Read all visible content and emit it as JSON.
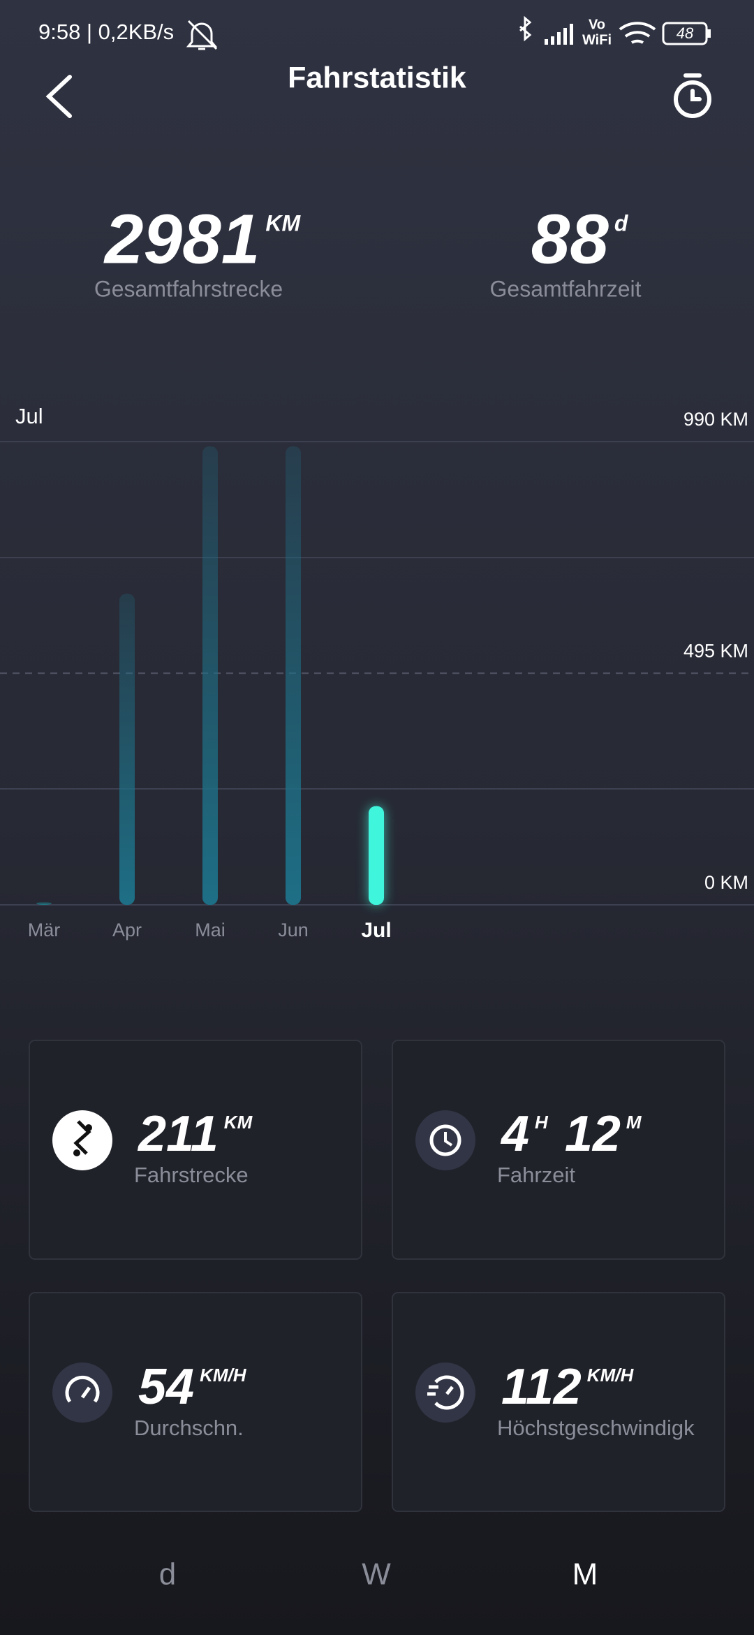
{
  "status_bar": {
    "time": "9:58 | 0,2KB/s",
    "volte": "Vo",
    "wifi": "WiFi",
    "battery": "48"
  },
  "header": {
    "title": "Fahrstatistik"
  },
  "summary": [
    {
      "value": "2981",
      "unit": "KM",
      "label": "Gesamtfahrstrecke"
    },
    {
      "value": "88",
      "unit": "d",
      "label": "Gesamtfahrzeit"
    }
  ],
  "chart_data": {
    "type": "bar",
    "period_label": "Jul",
    "categories": [
      "Mär",
      "Apr",
      "Mai",
      "Jun",
      "Jul"
    ],
    "values": [
      6,
      665,
      980,
      980,
      211
    ],
    "colors": [
      "#1e7a86",
      "#1e6f86",
      "#1e6f86",
      "#1e6f86",
      "#3ff5dc"
    ],
    "ylim": [
      0,
      990
    ],
    "yticks": [
      {
        "value": 0,
        "label": "0 KM"
      },
      {
        "value": 495,
        "label": "495 KM"
      },
      {
        "value": 990,
        "label": "990 KM"
      }
    ],
    "grid": true
  },
  "cards": [
    {
      "parts": [
        {
          "value": "211",
          "unit": "KM"
        }
      ],
      "label": "Fahrstrecke"
    },
    {
      "parts": [
        {
          "value": "4",
          "unit": "H"
        },
        {
          "value": "12",
          "unit": "M"
        }
      ],
      "label": "Fahrzeit"
    },
    {
      "parts": [
        {
          "value": "54",
          "unit": "KM/H"
        }
      ],
      "label": "Durchschn."
    },
    {
      "parts": [
        {
          "value": "112",
          "unit": "KM/H"
        }
      ],
      "label": "Höchstgeschwindigk"
    }
  ],
  "tabs": [
    "d",
    "W",
    "M"
  ]
}
